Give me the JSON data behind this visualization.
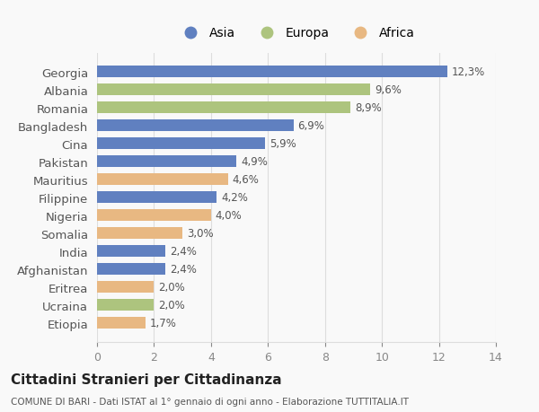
{
  "categories": [
    "Georgia",
    "Albania",
    "Romania",
    "Bangladesh",
    "Cina",
    "Pakistan",
    "Mauritius",
    "Filippine",
    "Nigeria",
    "Somalia",
    "India",
    "Afghanistan",
    "Eritrea",
    "Ucraina",
    "Etiopia"
  ],
  "values": [
    12.3,
    9.6,
    8.9,
    6.9,
    5.9,
    4.9,
    4.6,
    4.2,
    4.0,
    3.0,
    2.4,
    2.4,
    2.0,
    2.0,
    1.7
  ],
  "labels": [
    "12,3%",
    "9,6%",
    "8,9%",
    "6,9%",
    "5,9%",
    "4,9%",
    "4,6%",
    "4,2%",
    "4,0%",
    "3,0%",
    "2,4%",
    "2,4%",
    "2,0%",
    "2,0%",
    "1,7%"
  ],
  "continents": [
    "Asia",
    "Europa",
    "Europa",
    "Asia",
    "Asia",
    "Asia",
    "Africa",
    "Asia",
    "Africa",
    "Africa",
    "Asia",
    "Asia",
    "Africa",
    "Europa",
    "Africa"
  ],
  "colors": {
    "Asia": "#6080c0",
    "Europa": "#adc47e",
    "Africa": "#e8b882"
  },
  "xlim": [
    0,
    14
  ],
  "xticks": [
    0,
    2,
    4,
    6,
    8,
    10,
    12,
    14
  ],
  "title": "Cittadini Stranieri per Cittadinanza",
  "subtitle": "COMUNE DI BARI - Dati ISTAT al 1° gennaio di ogni anno - Elaborazione TUTTITALIA.IT",
  "background_color": "#f9f9f9",
  "grid_color": "#dddddd",
  "legend_order": [
    "Asia",
    "Europa",
    "Africa"
  ]
}
